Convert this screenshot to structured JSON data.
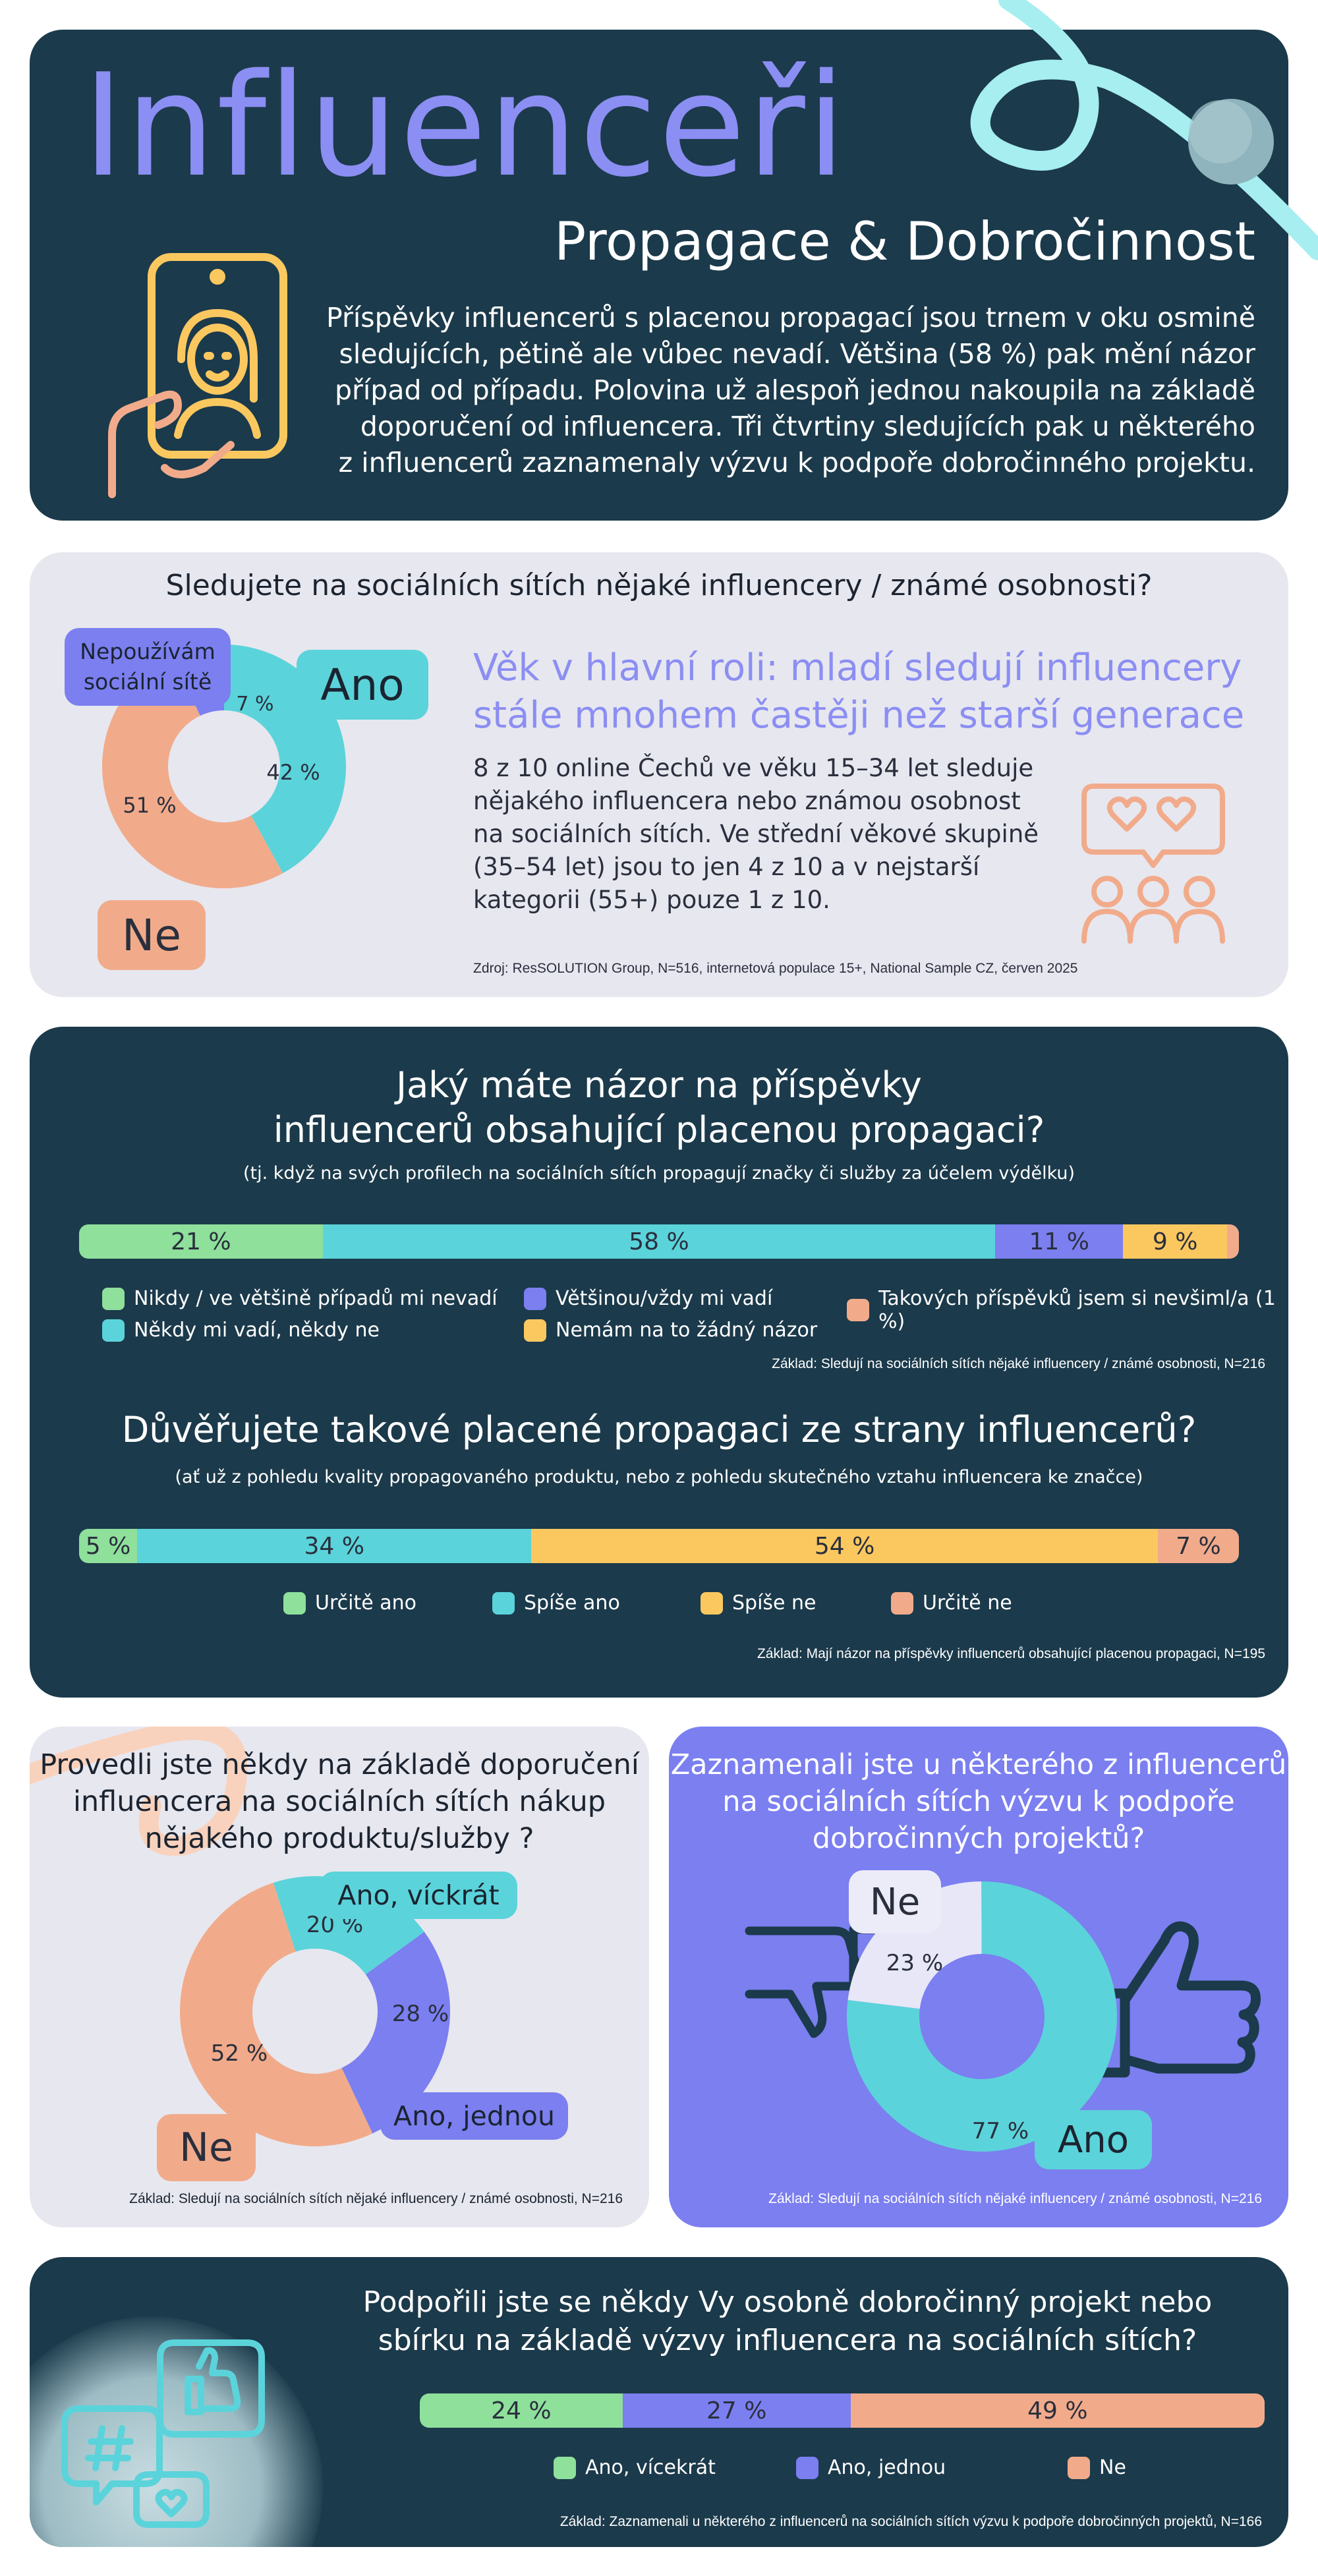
{
  "header": {
    "title": "Influenceři",
    "subtitle": "Propagace & Dobročinnost",
    "text_lines": [
      "Příspěvky influencerů s placenou propagací jsou trnem v oku osmině",
      "sledujících, pětině ale vůbec nevadí. Většina (58 %) pak mění názor",
      "případ od případu. Polovina už alespoň jednou nakoupila na základě",
      "doporučení od influencera. Tři čtvrtiny sledujících pak u některého",
      "z influencerů zaznamenaly výzvu k podpoře dobročinného projektu."
    ]
  },
  "colors": {
    "dark": "#1b3a4b",
    "light": "#e7e7ef",
    "violet": "#7b7ff0",
    "teal": "#5bd3da",
    "green": "#8ee09b",
    "purple": "#7b7ff0",
    "yellow": "#fbc860",
    "salmon": "#f1ab8b",
    "headline": "#8b8ef2"
  },
  "chart_data": [
    {
      "type": "pie",
      "title": "Sledujete na sociálních sítích nějaké influencery / známé osobnosti?",
      "categories": [
        "Ano",
        "Ne",
        "Nepoužívám sociální sítě"
      ],
      "values": [
        42,
        51,
        7
      ],
      "labels": [
        "42 %",
        "51 %",
        "7 %"
      ],
      "colors": [
        "#5bd3da",
        "#f1ab8b",
        "#7b7ff0"
      ]
    },
    {
      "type": "bar",
      "title": "Jaký máte názor na příspěvky influencerů obsahující placenou propagaci?",
      "subtitle": "(tj. když na svých profilech na sociálních sítích propagují značky či služby za účelem výdělku)",
      "categories": [
        "Nikdy / ve většině případů mi nevadí",
        "Někdy mi vadí, někdy ne",
        "Většinou/vždy mi vadí",
        "Nemám na to žádný názor",
        "Takových příspěvků jsem si nevšiml/a (1 %)"
      ],
      "values": [
        21,
        58,
        11,
        9,
        1
      ],
      "labels": [
        "21 %",
        "58 %",
        "11 %",
        "9 %",
        ""
      ],
      "colors": [
        "#8ee09b",
        "#5bd3da",
        "#7b7ff0",
        "#fbc860",
        "#f1ab8b"
      ],
      "base": "Základ: Sledují na sociálních sítích nějaké influencery / známé osobnosti, N=216"
    },
    {
      "type": "bar",
      "title": "Důvěřujete takové placené propagaci ze strany influencerů?",
      "subtitle": "(ať už z pohledu kvality propagovaného produktu, nebo z pohledu skutečného vztahu influencera ke značce)",
      "categories": [
        "Určitě ano",
        "Spíše ano",
        "Spíše ne",
        "Určitě ne"
      ],
      "values": [
        5,
        34,
        54,
        7
      ],
      "labels": [
        "5 %",
        "34 %",
        "54 %",
        "7 %"
      ],
      "colors": [
        "#8ee09b",
        "#5bd3da",
        "#fbc860",
        "#f1ab8b"
      ],
      "base": "Základ: Mají názor na příspěvky influencerů obsahující placenou propagaci, N=195"
    },
    {
      "type": "pie",
      "title": "Provedli jste někdy na základě doporučení influencera na sociálních sítích nákup nějakého produktu/služby ?",
      "categories": [
        "Ano, víckrát",
        "Ano, jednou",
        "Ne"
      ],
      "values": [
        20,
        28,
        52
      ],
      "labels": [
        "20 %",
        "28 %",
        "52 %"
      ],
      "colors": [
        "#5bd3da",
        "#7b7ff0",
        "#f1ab8b"
      ],
      "base": "Základ: Sledují na sociálních sítích nějaké influencery / známé osobnosti, N=216"
    },
    {
      "type": "pie",
      "title": "Zaznamenali jste u některého z influencerů na sociálních sítích výzvu k podpoře dobročinných projektů?",
      "categories": [
        "Ne",
        "Ano"
      ],
      "values": [
        23,
        77
      ],
      "labels": [
        "23 %",
        "77 %"
      ],
      "colors": [
        "#e7e7f7",
        "#5bd3da"
      ],
      "base": "Základ: Sledují na sociálních sítích nějaké influencery / známé osobnosti, N=216"
    },
    {
      "type": "bar",
      "title": "Podpořili jste se někdy Vy osobně dobročinný projekt nebo sbírku na základě výzvy influencera na sociálních sítích?",
      "categories": [
        "Ano, vícekrát",
        "Ano, jednou",
        "Ne"
      ],
      "values": [
        24,
        27,
        49
      ],
      "labels": [
        "24 %",
        "27 %",
        "49 %"
      ],
      "colors": [
        "#8ee09b",
        "#7b7ff0",
        "#f1ab8b"
      ],
      "base": "Základ: Zaznamenali u některého z influencerů na sociálních sítích výzvu k podpoře dobročinných projektů, N=166"
    }
  ],
  "follow": {
    "headline_lines": [
      "Věk v hlavní roli: mladí sledují influencery",
      "stále mnohem častěji než starší generace"
    ],
    "text_lines": [
      "8 z 10 online Čechů ve věku 15–34 let sleduje",
      "nějakého influencera nebo známou osobnost",
      "na sociálních sítích. Ve střední věkové skupině",
      "(35–54 let) jsou to jen 4 z 10 a v nejstarší",
      "kategorii (55+) pouze 1 z 10."
    ],
    "tags": {
      "ano": "Ano",
      "ne": "Ne",
      "nepouzivam_1": "Nepoužívám",
      "nepouzivam_2": "sociální sítě"
    },
    "source": "Zdroj: ResSOLUTION Group, N=516, internetová populace 15+, National Sample CZ, červen 2025"
  },
  "q2": {
    "title_lines": [
      "Jaký máte názor na příspěvky",
      "influencerů obsahující placenou propagaci?"
    ]
  },
  "q4": {
    "title_lines": [
      "Provedli jste někdy na základě doporučení",
      "influencera na sociálních sítích nákup",
      "nějakého produktu/služby ?"
    ]
  },
  "q5": {
    "title_lines": [
      "Zaznamenali jste u některého z influencerů",
      "na sociálních sítích výzvu k podpoře",
      "dobročinných projektů?"
    ]
  },
  "q6": {
    "title_lines": [
      "Podpořili jste se někdy Vy osobně dobročinný projekt nebo",
      "sbírku na základě výzvy influencera na sociálních sítích?"
    ]
  }
}
